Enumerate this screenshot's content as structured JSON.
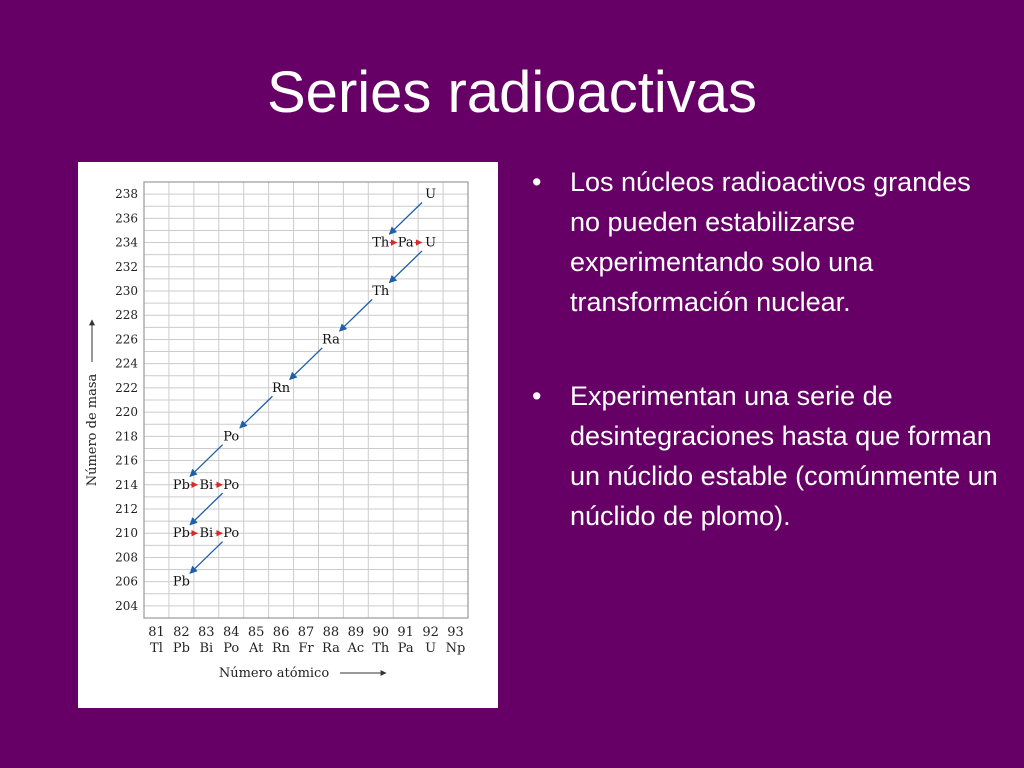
{
  "slide": {
    "title": "Series radioactivas",
    "bullets": [
      "Los núcleos radioactivos grandes no pueden estabilizarse experimentando solo una transformación nuclear.",
      "Experimentan una serie de desintegraciones hasta que forman un núclido estable (comúnmente un núclido de plomo)."
    ],
    "bullet_symbol": "•"
  },
  "colors": {
    "background": "#660066",
    "text": "#ffffff",
    "grid": "#cccccc",
    "alpha_arrow": "#1f5fa8",
    "beta_arrow": "#d62b2b"
  },
  "chart_data": {
    "type": "scatter",
    "xlabel": "Número atómico",
    "ylabel": "Número de masa",
    "x_ticks": [
      81,
      82,
      83,
      84,
      85,
      86,
      87,
      88,
      89,
      90,
      91,
      92,
      93
    ],
    "x_symbols": [
      "Tl",
      "Pb",
      "Bi",
      "Po",
      "At",
      "Rn",
      "Fr",
      "Ra",
      "Ac",
      "Th",
      "Pa",
      "U",
      "Np"
    ],
    "y_ticks": [
      204,
      206,
      208,
      210,
      212,
      214,
      216,
      218,
      220,
      222,
      224,
      226,
      228,
      230,
      232,
      234,
      236,
      238
    ],
    "xlim": [
      80.5,
      93.5
    ],
    "ylim": [
      203,
      239
    ],
    "grid": true,
    "nuclides": [
      {
        "label": "U",
        "z": 92,
        "a": 238
      },
      {
        "label": "Th",
        "z": 90,
        "a": 234
      },
      {
        "label": "Pa",
        "z": 91,
        "a": 234
      },
      {
        "label": "U",
        "z": 92,
        "a": 234
      },
      {
        "label": "Th",
        "z": 90,
        "a": 230
      },
      {
        "label": "Ra",
        "z": 88,
        "a": 226
      },
      {
        "label": "Rn",
        "z": 86,
        "a": 222
      },
      {
        "label": "Po",
        "z": 84,
        "a": 218
      },
      {
        "label": "Pb",
        "z": 82,
        "a": 214
      },
      {
        "label": "Bi",
        "z": 83,
        "a": 214
      },
      {
        "label": "Po",
        "z": 84,
        "a": 214
      },
      {
        "label": "Pb",
        "z": 82,
        "a": 210
      },
      {
        "label": "Bi",
        "z": 83,
        "a": 210
      },
      {
        "label": "Po",
        "z": 84,
        "a": 210
      },
      {
        "label": "Pb",
        "z": 82,
        "a": 206
      }
    ],
    "alpha_decays": [
      {
        "from": [
          92,
          238
        ],
        "to": [
          90,
          234
        ]
      },
      {
        "from": [
          92,
          234
        ],
        "to": [
          90,
          230
        ]
      },
      {
        "from": [
          90,
          230
        ],
        "to": [
          88,
          226
        ]
      },
      {
        "from": [
          88,
          226
        ],
        "to": [
          86,
          222
        ]
      },
      {
        "from": [
          86,
          222
        ],
        "to": [
          84,
          218
        ]
      },
      {
        "from": [
          84,
          218
        ],
        "to": [
          82,
          214
        ]
      },
      {
        "from": [
          84,
          214
        ],
        "to": [
          82,
          210
        ]
      },
      {
        "from": [
          84,
          210
        ],
        "to": [
          82,
          206
        ]
      }
    ],
    "beta_decays": [
      {
        "from": [
          90,
          234
        ],
        "to": [
          91,
          234
        ]
      },
      {
        "from": [
          91,
          234
        ],
        "to": [
          92,
          234
        ]
      },
      {
        "from": [
          82,
          214
        ],
        "to": [
          83,
          214
        ]
      },
      {
        "from": [
          83,
          214
        ],
        "to": [
          84,
          214
        ]
      },
      {
        "from": [
          82,
          210
        ],
        "to": [
          83,
          210
        ]
      },
      {
        "from": [
          83,
          210
        ],
        "to": [
          84,
          210
        ]
      }
    ]
  }
}
